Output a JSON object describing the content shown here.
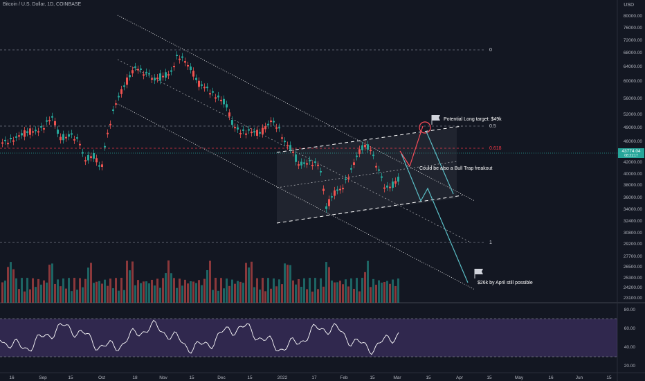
{
  "header": {
    "title": "Bitcoin / U.S. Dollar, 1D, COINBASE",
    "currency": "USD"
  },
  "fib_levels": [
    "0",
    "0.5",
    "0.618",
    "1"
  ],
  "price_axis": {
    "labels": [
      "80000.00",
      "76000.00",
      "72000.00",
      "68000.00",
      "64000.00",
      "60000.00",
      "56000.00",
      "52000.00",
      "49000.00",
      "46000.00",
      "42000.00",
      "40000.00",
      "38000.00",
      "36000.00",
      "34000.00",
      "32400.00",
      "30800.00",
      "29200.00",
      "27700.00",
      "26500.00",
      "25300.00",
      "24200.00",
      "23100.00"
    ],
    "current_price": "43774.04",
    "current_sub": "08:21:17",
    "fib618_color": "#f23645"
  },
  "rsi_axis": [
    "80.00",
    "60.00",
    "40.00",
    "20.00"
  ],
  "time_axis": [
    "16",
    "Sep",
    "15",
    "Oct",
    "18",
    "Nov",
    "15",
    "Dec",
    "15",
    "2022",
    "17",
    "Feb",
    "15",
    "Mar",
    "15",
    "Apr",
    "15",
    "May",
    "16",
    "Jun",
    "15"
  ],
  "annotations": {
    "long_target": "Potential Long target: $49k",
    "bull_trap": "Could be also a Bull Trap freakout",
    "april_target": "$26k by April still possible"
  },
  "colors": {
    "up": "#26a69a",
    "down": "#ef5350",
    "projection": "#5bc0c8",
    "rsi_band": "#7e57c2",
    "background": "#131722"
  },
  "icons": [
    "flag-icon"
  ]
}
